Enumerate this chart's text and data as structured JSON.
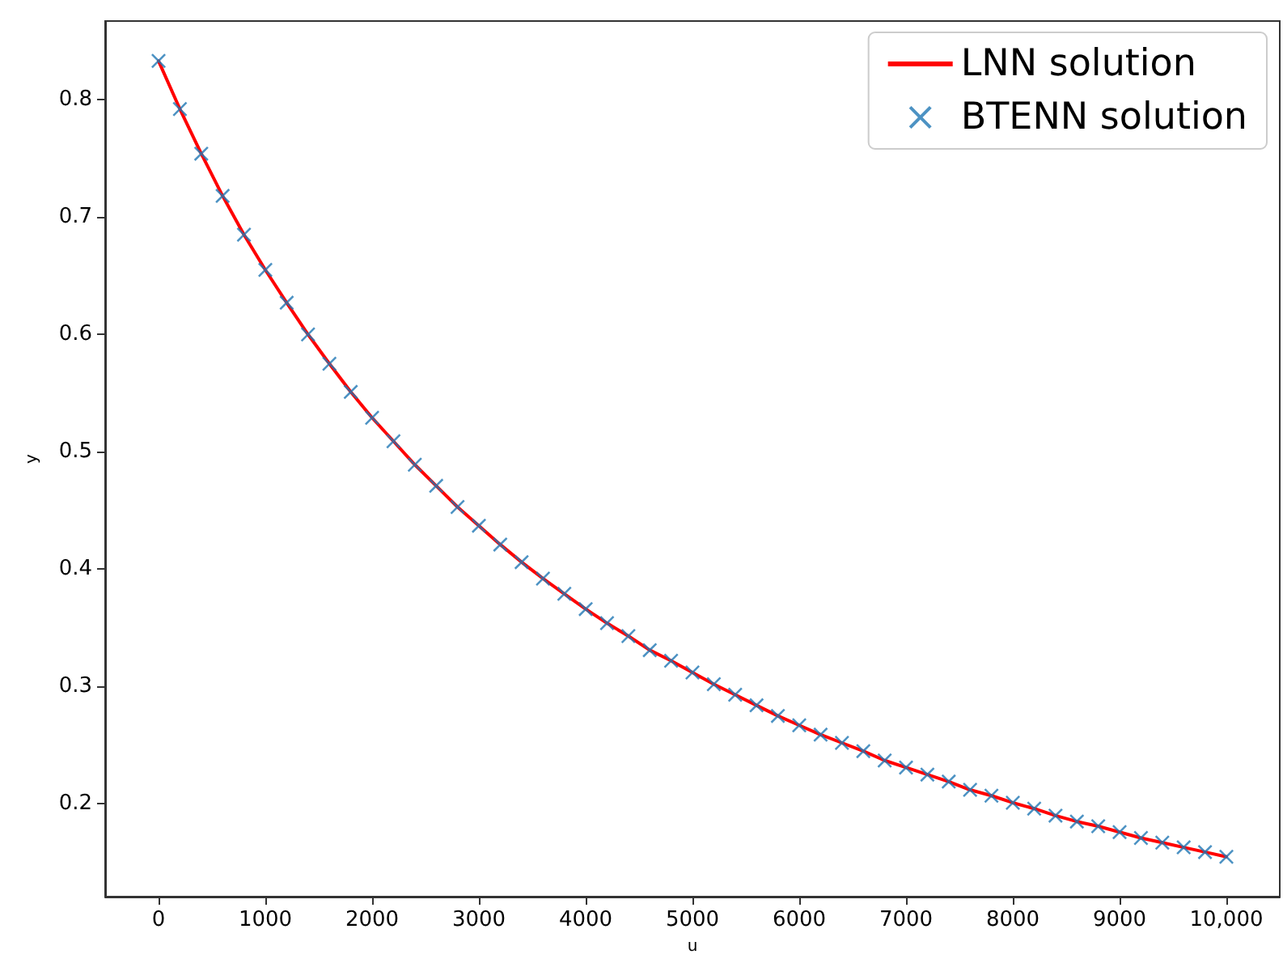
{
  "chart_data": {
    "type": "line",
    "xlabel": "u",
    "ylabel": "y",
    "x": [
      0,
      200,
      400,
      600,
      800,
      1000,
      1200,
      1400,
      1600,
      1800,
      2000,
      2200,
      2400,
      2600,
      2800,
      3000,
      3200,
      3400,
      3600,
      3800,
      4000,
      4200,
      4400,
      4600,
      4800,
      5000,
      5200,
      5400,
      5600,
      5800,
      6000,
      6200,
      6400,
      6600,
      6800,
      7000,
      7200,
      7400,
      7600,
      7800,
      8000,
      8200,
      8400,
      8600,
      8800,
      9000,
      9200,
      9400,
      9600,
      9800,
      10000
    ],
    "series": [
      {
        "name": "LNN solution",
        "type": "line",
        "color": "#ff0000",
        "marker": "none",
        "values": [
          0.833,
          0.792,
          0.754,
          0.718,
          0.685,
          0.655,
          0.627,
          0.6,
          0.575,
          0.551,
          0.529,
          0.509,
          0.489,
          0.471,
          0.453,
          0.437,
          0.421,
          0.406,
          0.392,
          0.379,
          0.366,
          0.354,
          0.343,
          0.331,
          0.322,
          0.312,
          0.302,
          0.293,
          0.284,
          0.275,
          0.267,
          0.259,
          0.252,
          0.245,
          0.237,
          0.231,
          0.225,
          0.219,
          0.212,
          0.207,
          0.201,
          0.196,
          0.19,
          0.185,
          0.181,
          0.176,
          0.171,
          0.167,
          0.163,
          0.159,
          0.155
        ]
      },
      {
        "name": "BTENN solution",
        "type": "scatter",
        "color": "#1f77b4",
        "marker": "cross",
        "values": [
          0.833,
          0.792,
          0.754,
          0.718,
          0.685,
          0.655,
          0.627,
          0.6,
          0.575,
          0.551,
          0.529,
          0.509,
          0.489,
          0.471,
          0.453,
          0.437,
          0.421,
          0.406,
          0.392,
          0.379,
          0.366,
          0.354,
          0.343,
          0.331,
          0.322,
          0.312,
          0.302,
          0.293,
          0.284,
          0.275,
          0.267,
          0.259,
          0.252,
          0.245,
          0.237,
          0.231,
          0.225,
          0.219,
          0.212,
          0.207,
          0.201,
          0.196,
          0.19,
          0.185,
          0.181,
          0.176,
          0.171,
          0.167,
          0.163,
          0.159,
          0.155
        ]
      }
    ],
    "xlim": [
      -500,
      10500
    ],
    "xticks": [
      0,
      1000,
      2000,
      3000,
      4000,
      5000,
      6000,
      7000,
      8000,
      9000,
      {
        "value": 10000,
        "label": "10,000"
      }
    ],
    "ylim": [
      0.121,
      0.867
    ],
    "yticks": [
      0.2,
      0.3,
      0.4,
      0.5,
      0.6,
      0.7,
      0.8
    ],
    "grid": false,
    "legend": "top right",
    "line_style": "solid"
  }
}
